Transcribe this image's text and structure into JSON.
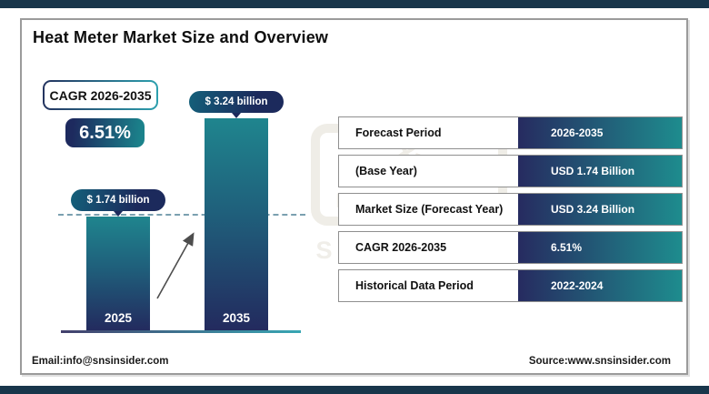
{
  "header": {
    "title": "Heat Meter Market Size and Overview"
  },
  "cagr_box": {
    "label": "CAGR 2026-2035",
    "value": "6.51%"
  },
  "chart_data": {
    "type": "bar",
    "categories": [
      "2025",
      "2035"
    ],
    "values": [
      1.74,
      3.24
    ],
    "bar_value_labels": [
      "$ 1.74 billion",
      "$ 3.24 billion"
    ],
    "unit": "USD billion",
    "title": "",
    "xlabel": "",
    "ylabel": "",
    "ylim": [
      0,
      3.6
    ],
    "grid": false,
    "legend": "none",
    "annotations": [
      "growth arrow between bars",
      "dashed reference line at 2025 bar top"
    ]
  },
  "table": {
    "rows": [
      {
        "label": "Forecast Period",
        "value": "2026-2035"
      },
      {
        "label": "(Base Year)",
        "value": "USD 1.74 Billion"
      },
      {
        "label": "Market Size (Forecast Year)",
        "value": "USD 3.24 Billion"
      },
      {
        "label": "CAGR 2026-2035",
        "value": "6.51%"
      },
      {
        "label": "Historical Data Period",
        "value": "2022-2024"
      }
    ]
  },
  "footer": {
    "email": "Email:info@snsinsider.com",
    "source": "Source:www.snsinsider.com"
  },
  "watermark": {
    "symbol": "&",
    "name": "INSIDER",
    "tagline": "Strategy & Stats"
  },
  "colors": {
    "band_navy": "#18364b",
    "navy": "#232a5e",
    "teal": "#1f858e",
    "table_gradient_left": "#262b60",
    "table_gradient_right": "#1e8c8e",
    "dashed_line": "#7aa0b0",
    "border_gray": "#9b9b9b"
  }
}
